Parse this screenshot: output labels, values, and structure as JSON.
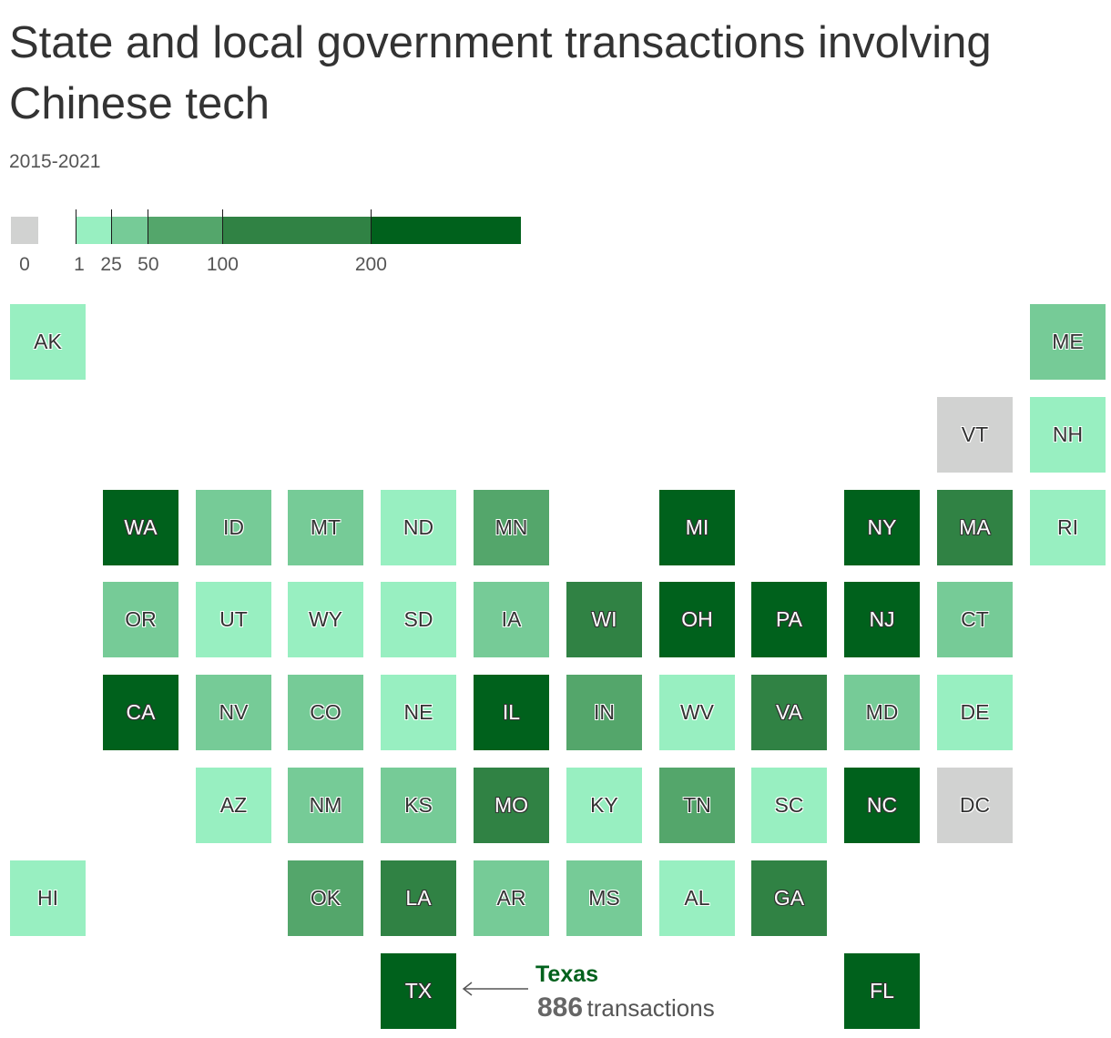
{
  "title": "State and local government transactions involving Chinese tech",
  "subtitle": "2015-2021",
  "legend": {
    "zero_label": "0",
    "zero_color": "#d1d2d1",
    "bins": [
      {
        "from": 1,
        "to": 25,
        "color": "#98efc1"
      },
      {
        "from": 25,
        "to": 50,
        "color": "#76cb97"
      },
      {
        "from": 50,
        "to": 100,
        "color": "#54a66b"
      },
      {
        "from": 100,
        "to": 200,
        "color": "#308244"
      },
      {
        "from": 200,
        "to": 400,
        "color": "#00611c"
      }
    ],
    "tick_labels": [
      {
        "value": 1,
        "label": "1"
      },
      {
        "value": 25,
        "label": "25"
      },
      {
        "value": 50,
        "label": "50"
      },
      {
        "value": 100,
        "label": "100"
      },
      {
        "value": 200,
        "label": "200"
      }
    ]
  },
  "states": [
    {
      "abbr": "AK",
      "col": 0,
      "row": 0,
      "bin": 1
    },
    {
      "abbr": "ME",
      "col": 11,
      "row": 0,
      "bin": 2
    },
    {
      "abbr": "VT",
      "col": 10,
      "row": 1,
      "bin": 0
    },
    {
      "abbr": "NH",
      "col": 11,
      "row": 1,
      "bin": 1
    },
    {
      "abbr": "WA",
      "col": 1,
      "row": 2,
      "bin": 5
    },
    {
      "abbr": "ID",
      "col": 2,
      "row": 2,
      "bin": 2
    },
    {
      "abbr": "MT",
      "col": 3,
      "row": 2,
      "bin": 2
    },
    {
      "abbr": "ND",
      "col": 4,
      "row": 2,
      "bin": 1
    },
    {
      "abbr": "MN",
      "col": 5,
      "row": 2,
      "bin": 3
    },
    {
      "abbr": "MI",
      "col": 7,
      "row": 2,
      "bin": 5
    },
    {
      "abbr": "NY",
      "col": 9,
      "row": 2,
      "bin": 5
    },
    {
      "abbr": "MA",
      "col": 10,
      "row": 2,
      "bin": 4
    },
    {
      "abbr": "RI",
      "col": 11,
      "row": 2,
      "bin": 1
    },
    {
      "abbr": "OR",
      "col": 1,
      "row": 3,
      "bin": 2
    },
    {
      "abbr": "UT",
      "col": 2,
      "row": 3,
      "bin": 1
    },
    {
      "abbr": "WY",
      "col": 3,
      "row": 3,
      "bin": 1
    },
    {
      "abbr": "SD",
      "col": 4,
      "row": 3,
      "bin": 1
    },
    {
      "abbr": "IA",
      "col": 5,
      "row": 3,
      "bin": 2
    },
    {
      "abbr": "WI",
      "col": 6,
      "row": 3,
      "bin": 4
    },
    {
      "abbr": "OH",
      "col": 7,
      "row": 3,
      "bin": 5
    },
    {
      "abbr": "PA",
      "col": 8,
      "row": 3,
      "bin": 5
    },
    {
      "abbr": "NJ",
      "col": 9,
      "row": 3,
      "bin": 5
    },
    {
      "abbr": "CT",
      "col": 10,
      "row": 3,
      "bin": 2
    },
    {
      "abbr": "CA",
      "col": 1,
      "row": 4,
      "bin": 5
    },
    {
      "abbr": "NV",
      "col": 2,
      "row": 4,
      "bin": 2
    },
    {
      "abbr": "CO",
      "col": 3,
      "row": 4,
      "bin": 2
    },
    {
      "abbr": "NE",
      "col": 4,
      "row": 4,
      "bin": 1
    },
    {
      "abbr": "IL",
      "col": 5,
      "row": 4,
      "bin": 5
    },
    {
      "abbr": "IN",
      "col": 6,
      "row": 4,
      "bin": 3
    },
    {
      "abbr": "WV",
      "col": 7,
      "row": 4,
      "bin": 1
    },
    {
      "abbr": "VA",
      "col": 8,
      "row": 4,
      "bin": 4
    },
    {
      "abbr": "MD",
      "col": 9,
      "row": 4,
      "bin": 2
    },
    {
      "abbr": "DE",
      "col": 10,
      "row": 4,
      "bin": 1
    },
    {
      "abbr": "AZ",
      "col": 2,
      "row": 5,
      "bin": 1
    },
    {
      "abbr": "NM",
      "col": 3,
      "row": 5,
      "bin": 2
    },
    {
      "abbr": "KS",
      "col": 4,
      "row": 5,
      "bin": 2
    },
    {
      "abbr": "MO",
      "col": 5,
      "row": 5,
      "bin": 4
    },
    {
      "abbr": "KY",
      "col": 6,
      "row": 5,
      "bin": 1
    },
    {
      "abbr": "TN",
      "col": 7,
      "row": 5,
      "bin": 3
    },
    {
      "abbr": "SC",
      "col": 8,
      "row": 5,
      "bin": 1
    },
    {
      "abbr": "NC",
      "col": 9,
      "row": 5,
      "bin": 5
    },
    {
      "abbr": "DC",
      "col": 10,
      "row": 5,
      "bin": 0
    },
    {
      "abbr": "HI",
      "col": 0,
      "row": 6,
      "bin": 1
    },
    {
      "abbr": "OK",
      "col": 3,
      "row": 6,
      "bin": 3
    },
    {
      "abbr": "LA",
      "col": 4,
      "row": 6,
      "bin": 4
    },
    {
      "abbr": "AR",
      "col": 5,
      "row": 6,
      "bin": 2
    },
    {
      "abbr": "MS",
      "col": 6,
      "row": 6,
      "bin": 2
    },
    {
      "abbr": "AL",
      "col": 7,
      "row": 6,
      "bin": 1
    },
    {
      "abbr": "GA",
      "col": 8,
      "row": 6,
      "bin": 4
    },
    {
      "abbr": "TX",
      "col": 4,
      "row": 7,
      "bin": 5
    },
    {
      "abbr": "FL",
      "col": 9,
      "row": 7,
      "bin": 5
    }
  ],
  "annotation": {
    "state": "TX",
    "name": "Texas",
    "value": "886",
    "unit": "transactions"
  }
}
